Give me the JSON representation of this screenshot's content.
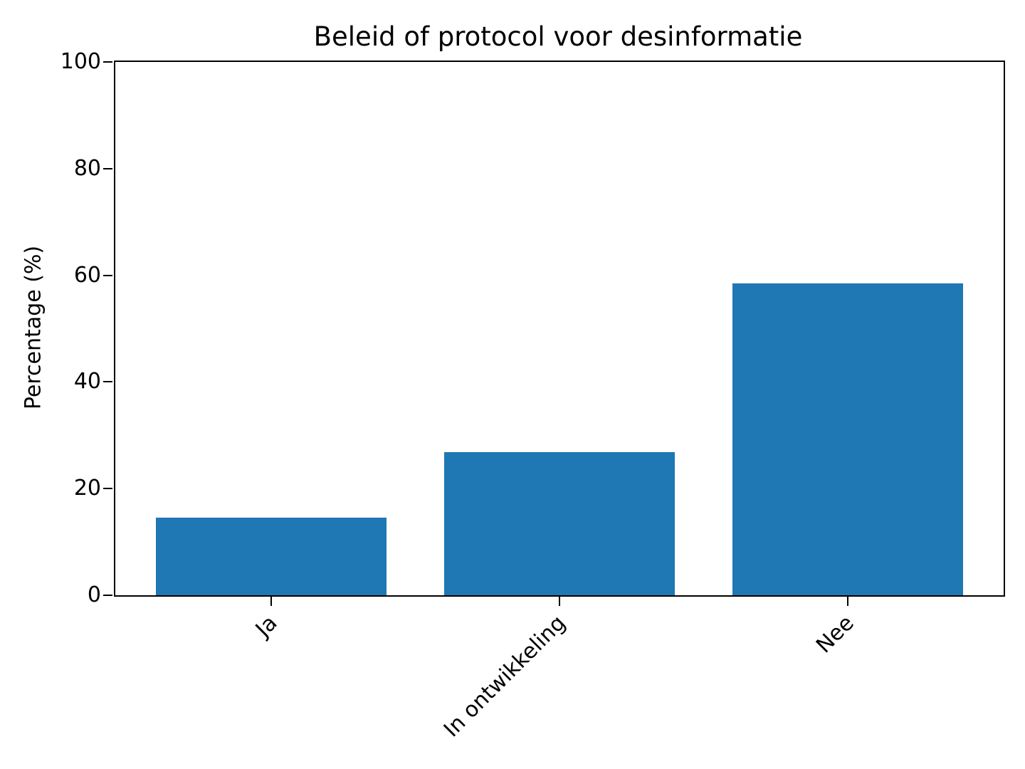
{
  "chart_data": {
    "type": "bar",
    "title": "Beleid of protocol voor desinformatie",
    "categories": [
      "Ja",
      "In ontwikkeling",
      "Nee"
    ],
    "values": [
      14.6,
      26.8,
      58.5
    ],
    "xlabel": "",
    "ylabel": "Percentage (%)",
    "ylim": [
      0,
      100
    ],
    "yticks": [
      0,
      20,
      40,
      60,
      80,
      100
    ],
    "bar_color": "#1f77b4",
    "grid": false,
    "legend": "none",
    "x_tick_rotation_deg": 45,
    "spines": "full-box"
  }
}
